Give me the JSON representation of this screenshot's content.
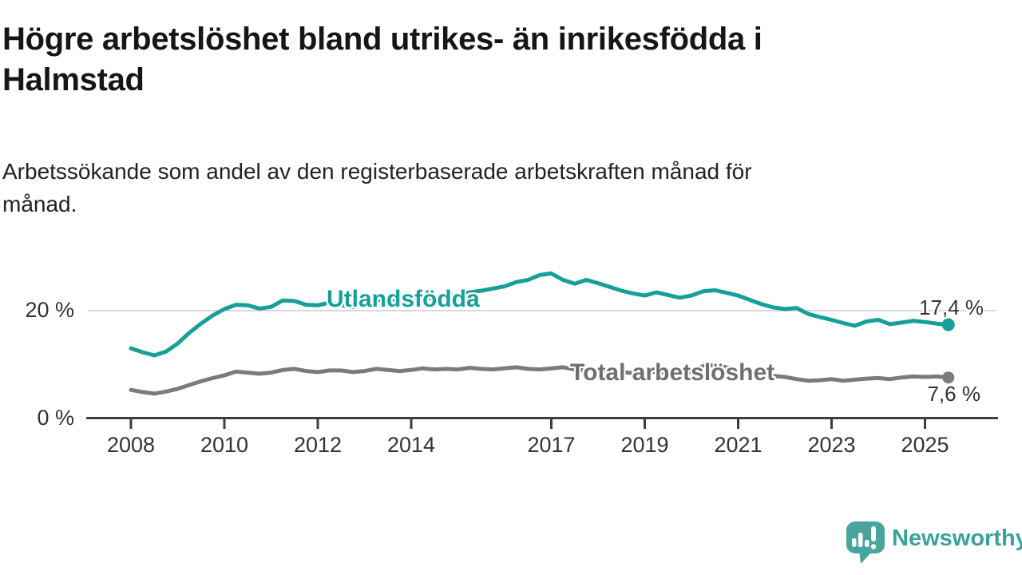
{
  "title": "Högre arbetslöshet bland utrikes- än inrikesfödda i\nHalmstad",
  "subtitle": "Arbetssökande som andel av den registerbaserade arbetskraften månad för\nmånad.",
  "colors": {
    "accent_teal": "#16A096",
    "series_gray": "#7B7B7B",
    "label_gray": "#6F6F6F",
    "axis": "#3D3D3D",
    "gridline": "#D8D8D8",
    "tick_text": "#333333",
    "logo_teal": "#48A59D",
    "wordmark_teal": "#3AA399"
  },
  "chart_data": {
    "type": "line",
    "title": "Högre arbetslöshet bland utrikes- än inrikesfödda i Halmstad",
    "subtitle": "Arbetssökande som andel av den registerbaserade arbetskraften månad för månad.",
    "xlabel": "",
    "ylabel": "%",
    "ylim": [
      0,
      30
    ],
    "x_start": 2008,
    "x_step": 0.25,
    "x_end": 2025.5,
    "grid": "single-line-at-20",
    "legend_position": "inline-labels",
    "x_ticks": [
      2008,
      2010,
      2012,
      2014,
      2017,
      2019,
      2021,
      2023,
      2025
    ],
    "y_axis_labels": [
      {
        "value": 20,
        "label": "20 %"
      },
      {
        "value": 0,
        "label": "0 %"
      }
    ],
    "series": [
      {
        "name": "Utlandsfödda",
        "color": "#16A096",
        "end_label": "17,4 %",
        "end_value": 17.4,
        "values": [
          13.0,
          12.3,
          11.7,
          12.4,
          13.9,
          15.9,
          17.6,
          19.1,
          20.3,
          21.1,
          21.0,
          20.4,
          20.7,
          21.9,
          21.8,
          21.1,
          21.0,
          21.5,
          21.0,
          20.7,
          21.2,
          21.9,
          22.1,
          21.7,
          22.0,
          22.5,
          22.2,
          22.7,
          22.9,
          23.4,
          23.7,
          24.1,
          24.5,
          25.3,
          25.7,
          26.6,
          26.9,
          25.7,
          25.0,
          25.7,
          25.1,
          24.4,
          23.7,
          23.2,
          22.8,
          23.4,
          22.9,
          22.4,
          22.8,
          23.6,
          23.8,
          23.3,
          22.8,
          22.0,
          21.2,
          20.6,
          20.3,
          20.5,
          19.4,
          18.8,
          18.3,
          17.7,
          17.2,
          18.0,
          18.3,
          17.5,
          17.8,
          18.1,
          17.9,
          17.6,
          17.4
        ]
      },
      {
        "name": "Total arbetslöshet",
        "color": "#7B7B7B",
        "end_label": "7,6 %",
        "end_value": 7.6,
        "values": [
          5.3,
          4.9,
          4.6,
          5.0,
          5.5,
          6.2,
          6.9,
          7.5,
          8.0,
          8.7,
          8.5,
          8.3,
          8.5,
          9.0,
          9.2,
          8.8,
          8.6,
          8.9,
          8.9,
          8.6,
          8.8,
          9.2,
          9.0,
          8.8,
          9.0,
          9.3,
          9.1,
          9.2,
          9.1,
          9.4,
          9.2,
          9.1,
          9.3,
          9.5,
          9.2,
          9.1,
          9.3,
          9.5,
          9.1,
          8.9,
          9.0,
          8.8,
          8.6,
          8.4,
          8.5,
          8.7,
          8.4,
          8.3,
          8.6,
          9.7,
          9.9,
          9.5,
          9.1,
          8.7,
          8.2,
          7.9,
          7.7,
          7.3,
          7.0,
          7.1,
          7.3,
          7.0,
          7.2,
          7.4,
          7.5,
          7.3,
          7.6,
          7.8,
          7.7,
          7.8,
          7.6
        ]
      }
    ]
  },
  "footer": {
    "brand": "Newsworthy"
  }
}
